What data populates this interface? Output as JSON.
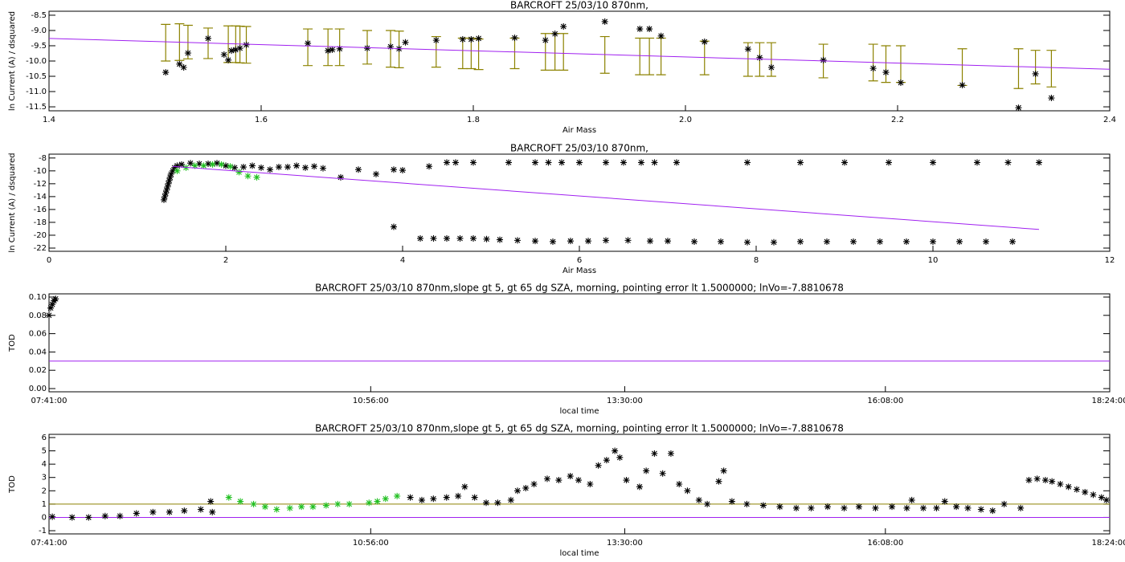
{
  "chart_data": [
    {
      "type": "scatter",
      "title": "BARCROFT 25/03/10 870nm,",
      "x_label": "Air Mass",
      "y_label": "ln Current (A) / dsquared",
      "xlim": [
        1.4,
        2.4
      ],
      "ylim": [
        -11.63,
        -8.37
      ],
      "xticks": [
        1.4,
        1.6,
        1.8,
        {
          "value": 2,
          "label": "2.0"
        },
        2.2,
        2.4
      ],
      "yticks": [
        -8.5,
        {
          "value": -9,
          "label": "-9.0"
        },
        -9.5,
        {
          "value": -10,
          "label": "-10.0"
        },
        -10.5,
        {
          "value": -11,
          "label": "-11.0"
        },
        -11.5
      ],
      "series": [
        {
          "type": "errorbar",
          "color": "#8c8200",
          "x": [
            1.51,
            1.523,
            1.531,
            1.55,
            1.569,
            1.576,
            1.58,
            1.586,
            1.644,
            1.663,
            1.674,
            1.7,
            1.722,
            1.73,
            1.765,
            1.79,
            1.798,
            1.805,
            1.839,
            1.868,
            1.877,
            1.885,
            1.924,
            1.957,
            1.966,
            1.977,
            2.018,
            2.059,
            2.07,
            2.081,
            2.13,
            2.177,
            2.189,
            2.203,
            2.261,
            2.314,
            2.33,
            2.345
          ],
          "values": [
            -9.4,
            -9.38,
            -9.38,
            -9.42,
            -9.45,
            -9.45,
            -9.46,
            -9.47,
            -9.55,
            -9.55,
            -9.55,
            -9.55,
            -9.6,
            -9.62,
            -9.7,
            -9.75,
            -9.75,
            -9.78,
            -9.75,
            -9.7,
            -9.7,
            -9.7,
            -9.8,
            -9.85,
            -9.85,
            -9.85,
            -9.9,
            -9.95,
            -9.95,
            -9.95,
            -10.0,
            -10.05,
            -10.1,
            -10.1,
            -10.2,
            -10.25,
            -10.2,
            -10.25
          ],
          "errors": [
            0.6,
            0.6,
            0.55,
            0.5,
            0.6,
            0.6,
            0.6,
            0.6,
            0.6,
            0.6,
            0.6,
            0.55,
            0.6,
            0.6,
            0.5,
            0.5,
            0.5,
            0.5,
            0.5,
            0.6,
            0.6,
            0.6,
            0.6,
            0.6,
            0.6,
            0.6,
            0.55,
            0.55,
            0.55,
            0.55,
            0.55,
            0.6,
            0.6,
            0.6,
            0.6,
            0.65,
            0.55,
            0.6
          ]
        },
        {
          "type": "scatter",
          "color": "#000000",
          "x": [
            1.51,
            1.523,
            1.527,
            1.531,
            1.55,
            1.565,
            1.569,
            1.572,
            1.576,
            1.58,
            1.586,
            1.644,
            1.663,
            1.667,
            1.674,
            1.7,
            1.722,
            1.73,
            1.736,
            1.765,
            1.79,
            1.798,
            1.805,
            1.839,
            1.868,
            1.877,
            1.885,
            1.924,
            1.957,
            1.966,
            1.977,
            2.018,
            2.059,
            2.07,
            2.081,
            2.13,
            2.177,
            2.189,
            2.203,
            2.261,
            2.314,
            2.33,
            2.345
          ],
          "values": [
            -10.37,
            -10.1,
            -10.21,
            -9.74,
            -9.26,
            -9.79,
            -9.97,
            -9.66,
            -9.63,
            -9.58,
            -9.47,
            -9.42,
            -9.66,
            -9.63,
            -9.6,
            -9.58,
            -9.53,
            -9.6,
            -9.39,
            -9.32,
            -9.29,
            -9.29,
            -9.26,
            -9.24,
            -9.32,
            -9.11,
            -8.87,
            -8.71,
            -8.95,
            -8.95,
            -9.18,
            -9.37,
            -9.61,
            -9.89,
            -10.21,
            -9.97,
            -10.24,
            -10.37,
            -10.71,
            -10.79,
            -11.53,
            -10.42,
            -11.21
          ]
        },
        {
          "type": "line",
          "color": "#a020f0",
          "x": [
            1.4,
            2.4
          ],
          "values": [
            -9.26,
            -10.27
          ]
        }
      ]
    },
    {
      "type": "scatter",
      "title": "BARCROFT 25/03/10 870nm,",
      "x_label": "Air Mass",
      "y_label": "ln Current (A) / dsquared",
      "xlim": [
        0,
        12
      ],
      "ylim": [
        -22.5,
        -7.4
      ],
      "xticks": [
        0,
        2,
        4,
        6,
        8,
        10,
        12
      ],
      "yticks": [
        -8,
        -10,
        -12,
        -14,
        -16,
        -18,
        -20,
        -22
      ],
      "series": [
        {
          "type": "scatter",
          "color": "#000000",
          "x": [
            1.3,
            1.31,
            1.32,
            1.33,
            1.34,
            1.35,
            1.36,
            1.37,
            1.38,
            1.4,
            1.42,
            1.45,
            1.5,
            1.6,
            1.7,
            1.8,
            1.9,
            2.0,
            2.1,
            2.2,
            2.3,
            2.4,
            2.5,
            2.6,
            2.7,
            2.8,
            2.9,
            3.0,
            3.1,
            3.3,
            3.5,
            3.7,
            3.9,
            4.0,
            4.3,
            3.9,
            4.5,
            4.6,
            4.8,
            5.2,
            5.5,
            5.65,
            5.8,
            6.0,
            6.3,
            6.5,
            6.7,
            6.85,
            7.1,
            7.9,
            8.5,
            9.0,
            9.5,
            10.0,
            10.5,
            10.85,
            11.2,
            4.2,
            4.35,
            4.5,
            4.65,
            4.8,
            4.95,
            5.1,
            5.3,
            5.5,
            5.7,
            5.9,
            6.1,
            6.3,
            6.55,
            6.8,
            7.0,
            7.3,
            7.6,
            7.9,
            8.2,
            8.5,
            8.8,
            9.1,
            9.4,
            9.7,
            10.0,
            10.3,
            10.6,
            10.9
          ],
          "values": [
            -14.5,
            -14,
            -13.5,
            -13,
            -12.5,
            -12,
            -11.5,
            -11,
            -10.5,
            -10,
            -9.5,
            -9.2,
            -9,
            -8.8,
            -8.9,
            -8.9,
            -8.8,
            -9.2,
            -9.5,
            -9.4,
            -9.2,
            -9.5,
            -9.8,
            -9.4,
            -9.4,
            -9.2,
            -9.5,
            -9.3,
            -9.6,
            -11,
            -9.8,
            -10.5,
            -9.8,
            -9.9,
            -9.3,
            -18.7,
            -8.7,
            -8.7,
            -8.7,
            -8.7,
            -8.7,
            -8.7,
            -8.7,
            -8.7,
            -8.7,
            -8.7,
            -8.7,
            -8.7,
            -8.7,
            -8.7,
            -8.7,
            -8.7,
            -8.7,
            -8.7,
            -8.7,
            -8.7,
            -8.7,
            -20.5,
            -20.5,
            -20.5,
            -20.5,
            -20.5,
            -20.6,
            -20.7,
            -20.8,
            -20.9,
            -21,
            -20.9,
            -20.9,
            -20.8,
            -20.8,
            -20.9,
            -20.9,
            -21,
            -21,
            -21.1,
            -21.1,
            -21,
            -21,
            -21,
            -21,
            -21,
            -21,
            -21,
            -21,
            -21
          ]
        },
        {
          "type": "scatter",
          "color": "#22c022",
          "x": [
            1.45,
            1.55,
            1.65,
            1.75,
            1.85,
            1.95,
            2.05,
            2.15,
            2.25,
            2.35
          ],
          "values": [
            -10,
            -9.5,
            -9.2,
            -9.2,
            -9,
            -9,
            -9.3,
            -10.2,
            -10.8,
            -11
          ]
        },
        {
          "type": "line",
          "color": "#a020f0",
          "x": [
            1.4,
            11.2
          ],
          "values": [
            -9.3,
            -19.1
          ]
        }
      ]
    },
    {
      "type": "scatter",
      "title": "BARCROFT 25/03/10 870nm,slope gt 5, gt 65 dg SZA, morning, pointing error lt 1.5000000; lnVo=-7.8810678",
      "x_label": "local time",
      "y_label": "TOD",
      "xlim": [
        "07:41:00",
        "18:24:00"
      ],
      "ylim": [
        -0.0035,
        0.1035
      ],
      "xticks": [
        "07:41:00",
        "10:56:00",
        "13:30:00",
        "16:08:00",
        "18:24:00"
      ],
      "yticks": [
        {
          "value": 0,
          "label": "0.00"
        },
        {
          "value": 0.02,
          "label": "0.02"
        },
        {
          "value": 0.04,
          "label": "0.04"
        },
        {
          "value": 0.06,
          "label": "0.06"
        },
        {
          "value": 0.08,
          "label": "0.08"
        },
        {
          "value": 0.1,
          "label": "0.10"
        }
      ],
      "series": [
        {
          "type": "scatter",
          "color": "#000000",
          "x": [
            "07:41:00",
            "07:42:00",
            "07:43:00",
            "07:44:00",
            "07:45:00"
          ],
          "values": [
            0.08,
            0.088,
            0.092,
            0.096,
            0.098
          ]
        },
        {
          "type": "line",
          "color": "#a020f0",
          "x": [
            "07:41:00",
            "18:24:00"
          ],
          "values": [
            0.03,
            0.03
          ]
        }
      ]
    },
    {
      "type": "scatter",
      "title": "BARCROFT 25/03/10 870nm,slope gt 5, gt 65 dg SZA, morning, pointing error lt 1.5000000; lnVo=-7.8810678",
      "x_label": "local time",
      "y_label": "TOD",
      "xlim": [
        "07:41:00",
        "18:24:00"
      ],
      "ylim": [
        -1.24,
        6.24
      ],
      "xticks": [
        "07:41:00",
        "10:56:00",
        "13:30:00",
        "16:08:00",
        "18:24:00"
      ],
      "yticks": [
        -1,
        0,
        1,
        2,
        3,
        4,
        5,
        6
      ],
      "series": [
        {
          "type": "line",
          "color": "#8c8200",
          "x": [
            "07:41:00",
            "18:24:00"
          ],
          "values": [
            1,
            1
          ]
        },
        {
          "type": "line",
          "color": "#a020f0",
          "x": [
            "07:41:00",
            "18:24:00"
          ],
          "values": [
            0,
            0
          ]
        },
        {
          "type": "scatter",
          "color": "#000000",
          "x": [
            "07:43:00",
            "07:55:00",
            "08:05:00",
            "08:15:00",
            "08:24:00",
            "08:34:00",
            "08:44:00",
            "08:54:00",
            "09:03:00",
            "09:13:00",
            "09:19:00",
            "09:20:00",
            "11:20:00",
            "11:27:00",
            "11:34:00",
            "11:42:00",
            "11:49:00",
            "11:53:00",
            "11:59:00",
            "12:06:00",
            "12:13:00",
            "12:21:00",
            "12:25:00",
            "12:30:00",
            "12:35:00",
            "12:43:00",
            "12:50:00",
            "12:57:00",
            "13:02:00",
            "13:09:00",
            "13:14:00",
            "13:19:00",
            "13:24:00",
            "13:27:00",
            "13:31:00",
            "13:39:00",
            "13:43:00",
            "13:48:00",
            "13:53:00",
            "13:58:00",
            "14:03:00",
            "14:08:00",
            "14:15:00",
            "14:20:00",
            "14:27:00",
            "14:30:00",
            "14:35:00",
            "14:44:00",
            "14:54:00",
            "15:04:00",
            "15:14:00",
            "15:23:00",
            "15:33:00",
            "15:43:00",
            "15:52:00",
            "16:02:00",
            "16:12:00",
            "16:21:00",
            "16:24:00",
            "16:31:00",
            "16:39:00",
            "16:44:00",
            "16:51:00",
            "16:58:00",
            "17:06:00",
            "17:13:00",
            "17:20:00",
            "17:30:00",
            "17:35:00",
            "17:40:00",
            "17:45:00",
            "17:49:00",
            "17:54:00",
            "17:59:00",
            "18:04:00",
            "18:09:00",
            "18:14:00",
            "18:19:00",
            "18:22:00"
          ],
          "values": [
            0.05,
            0,
            0,
            0.1,
            0.1,
            0.3,
            0.4,
            0.4,
            0.5,
            0.6,
            1.2,
            0.4,
            1.5,
            1.3,
            1.4,
            1.5,
            1.6,
            2.3,
            1.5,
            1.1,
            1.1,
            1.3,
            2,
            2.2,
            2.5,
            2.9,
            2.8,
            3.1,
            2.8,
            2.5,
            3.9,
            4.3,
            5,
            4.5,
            2.8,
            2.3,
            3.5,
            4.8,
            3.3,
            4.8,
            2.5,
            2,
            1.3,
            1,
            2.7,
            3.5,
            1.2,
            1,
            0.9,
            0.8,
            0.7,
            0.7,
            0.8,
            0.7,
            0.8,
            0.7,
            0.8,
            0.7,
            1.3,
            0.7,
            0.7,
            1.2,
            0.8,
            0.7,
            0.6,
            0.5,
            1,
            0.7,
            2.8,
            2.9,
            2.8,
            2.7,
            2.5,
            2.3,
            2.1,
            1.9,
            1.7,
            1.5,
            1.3
          ]
        },
        {
          "type": "scatter",
          "color": "#22c022",
          "x": [
            "09:30:00",
            "09:37:00",
            "09:45:00",
            "09:52:00",
            "09:59:00",
            "10:07:00",
            "10:14:00",
            "10:21:00",
            "10:29:00",
            "10:36:00",
            "10:43:00",
            "10:55:00",
            "11:00:00",
            "11:05:00",
            "11:12:00"
          ],
          "values": [
            1.5,
            1.2,
            1,
            0.8,
            0.6,
            0.7,
            0.8,
            0.8,
            0.9,
            1,
            1,
            1.1,
            1.2,
            1.4,
            1.6
          ]
        }
      ]
    }
  ]
}
